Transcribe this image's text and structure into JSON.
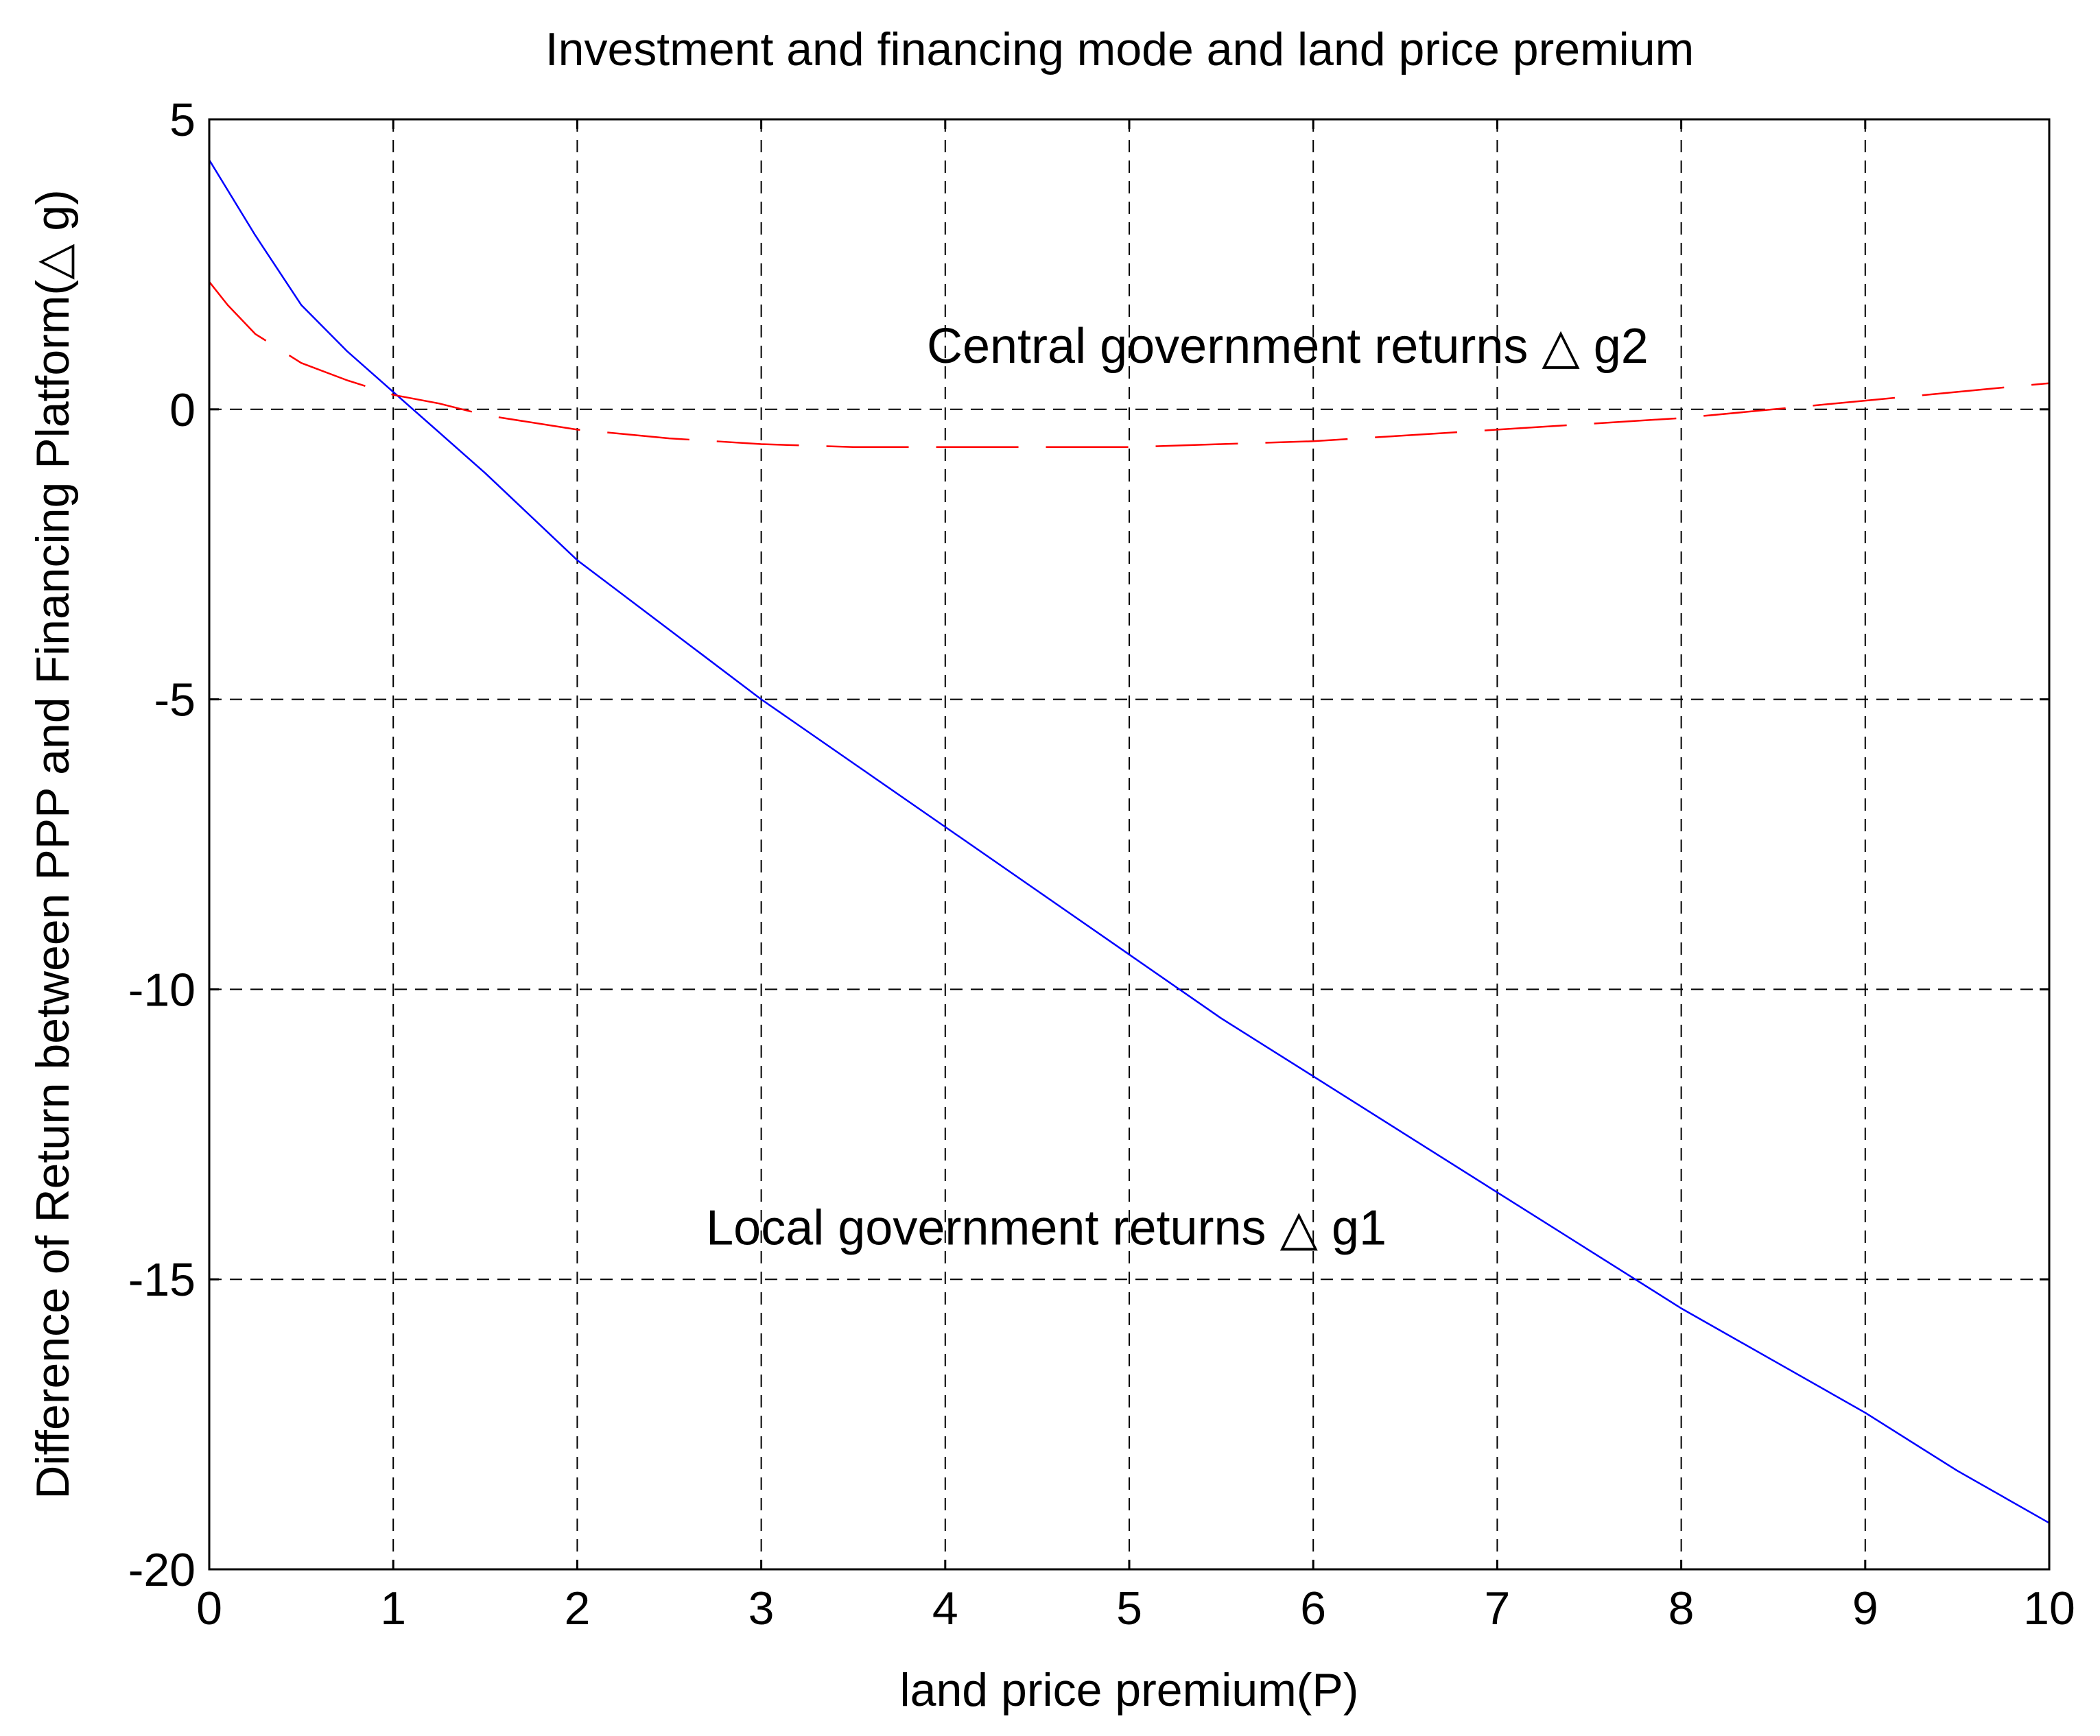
{
  "chart_data": {
    "type": "line",
    "title": "Investment and financing mode and land price premium",
    "xlabel": "land price premium(P)",
    "ylabel": "Difference of Return between PPP and Financing Platform(△ g)",
    "xlim": [
      0,
      10
    ],
    "ylim": [
      -20,
      5
    ],
    "xticks": [
      "0",
      "1",
      "2",
      "3",
      "4",
      "5",
      "6",
      "7",
      "8",
      "9",
      "10"
    ],
    "yticks": [
      "5",
      "0",
      "-5",
      "-10",
      "-15",
      "-20"
    ],
    "grid": true,
    "series": [
      {
        "name": "Local government returns △ g1",
        "color": "#0000ff",
        "style": "solid",
        "x": [
          0,
          0.25,
          0.5,
          0.75,
          1,
          1.25,
          1.5,
          2,
          2.5,
          3,
          3.5,
          4,
          4.5,
          5,
          5.5,
          6,
          6.5,
          7,
          7.5,
          8,
          8.5,
          9,
          9.5,
          10
        ],
        "y": [
          4.3,
          3.0,
          1.8,
          1.0,
          0.3,
          -0.4,
          -1.1,
          -2.6,
          -3.8,
          -5.0,
          -6.1,
          -7.2,
          -8.3,
          -9.4,
          -10.5,
          -11.5,
          -12.5,
          -13.5,
          -14.5,
          -15.5,
          -16.4,
          -17.3,
          -18.3,
          -19.2
        ]
      },
      {
        "name": "Central government returns △ g2",
        "color": "#ff0000",
        "style": "dashed",
        "x": [
          0,
          0.1,
          0.25,
          0.5,
          0.75,
          1,
          1.25,
          1.5,
          2,
          2.5,
          3,
          3.5,
          4,
          4.5,
          5,
          5.5,
          6,
          6.5,
          7,
          7.5,
          8,
          8.5,
          9,
          9.5,
          10
        ],
        "y": [
          2.2,
          1.8,
          1.3,
          0.8,
          0.5,
          0.25,
          0.1,
          -0.1,
          -0.35,
          -0.5,
          -0.6,
          -0.65,
          -0.65,
          -0.65,
          -0.65,
          -0.6,
          -0.55,
          -0.45,
          -0.35,
          -0.25,
          -0.15,
          0.0,
          0.15,
          0.3,
          0.45
        ]
      }
    ],
    "annotations": [
      {
        "text": "Central government returns △  g2",
        "x": 3.9,
        "y": 0.8
      },
      {
        "text": "Local government returns △  g1",
        "x": 2.7,
        "y": -14.4
      }
    ]
  }
}
